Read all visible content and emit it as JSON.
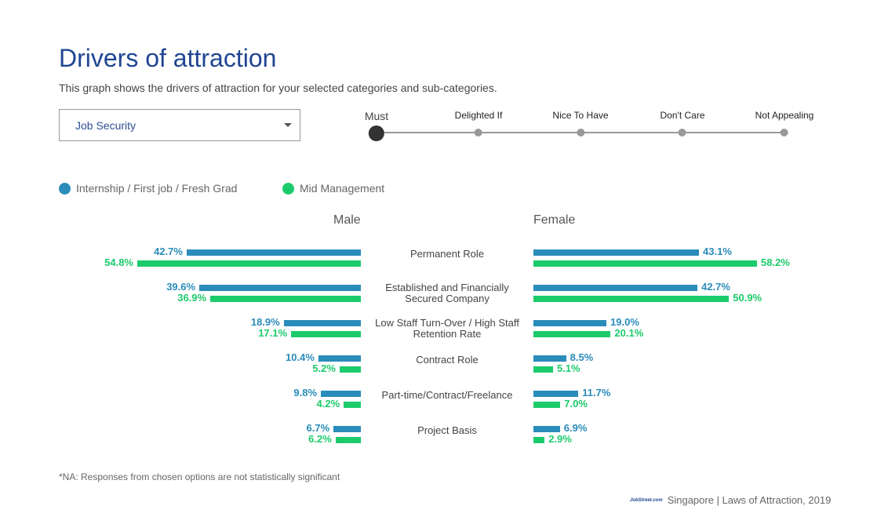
{
  "header": {
    "title": "Drivers of attraction",
    "subtitle": "This graph shows the drivers of attraction for your selected categories and sub-categories."
  },
  "dropdown": {
    "selected": "Job Security"
  },
  "scale": {
    "active_index": 0,
    "stops": [
      "Must",
      "Delighted If",
      "Nice To Have",
      "Don't Care",
      "Not Appealing"
    ]
  },
  "colors": {
    "series1": "#2a8cba",
    "series2": "#1ccb6b"
  },
  "note": "*NA: Responses from chosen options are not statistically significant",
  "footer": {
    "logo": "JobStreet.com",
    "text": "Singapore | Laws of Attraction, 2019"
  },
  "chart_data": {
    "type": "bar",
    "orientation": "horizontal-butterfly",
    "legend": [
      "Internship / First job / Fresh Grad",
      "Mid Management"
    ],
    "legend_position": "top-left",
    "panels": [
      "Male",
      "Female"
    ],
    "categories": [
      "Permanent Role",
      "Established and Financially Secured Company",
      "Low Staff Turn-Over / High Staff Retention Rate",
      "Contract Role",
      "Part-time/Contract/Freelance",
      "Project Basis"
    ],
    "category_lines": [
      [
        "Permanent Role"
      ],
      [
        "Established and Financially",
        "Secured Company"
      ],
      [
        "Low Staff Turn-Over / High Staff",
        "Retention Rate"
      ],
      [
        "Contract Role"
      ],
      [
        "Part-time/Contract/Freelance"
      ],
      [
        "Project Basis"
      ]
    ],
    "series": [
      {
        "name": "Internship / First job / Fresh Grad",
        "panel": "Male",
        "values": [
          42.7,
          39.6,
          18.9,
          10.4,
          9.8,
          6.7
        ]
      },
      {
        "name": "Mid Management",
        "panel": "Male",
        "values": [
          54.8,
          36.9,
          17.1,
          5.2,
          4.2,
          6.2
        ]
      },
      {
        "name": "Internship / First job / Fresh Grad",
        "panel": "Female",
        "values": [
          43.1,
          42.7,
          19.0,
          8.5,
          11.7,
          6.9
        ]
      },
      {
        "name": "Mid Management",
        "panel": "Female",
        "values": [
          58.2,
          50.9,
          20.1,
          5.1,
          7.0,
          2.9
        ]
      }
    ],
    "unit": "%"
  }
}
